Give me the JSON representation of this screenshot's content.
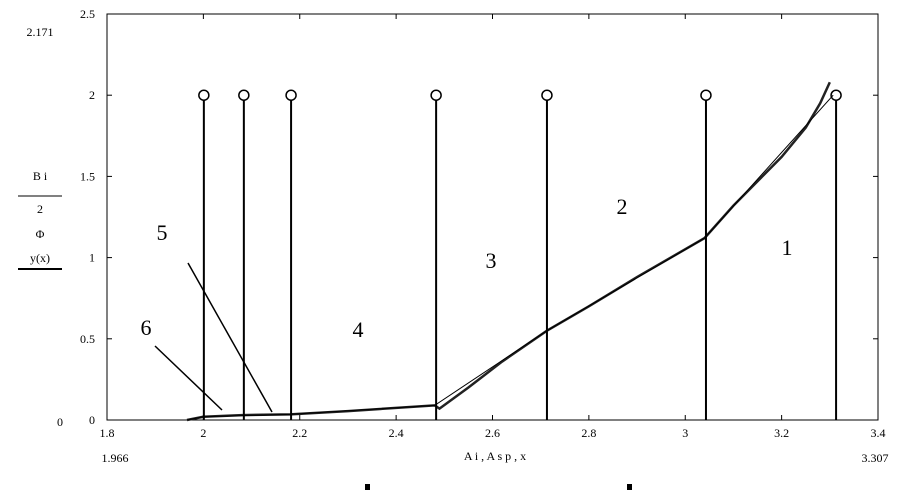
{
  "chart_data": {
    "type": "line",
    "x_label": "A i , A s p , x",
    "y_label_parts": [
      "B i",
      "2",
      "Φ",
      "y(x)"
    ],
    "limit_labels": {
      "y_max": "2.171",
      "y_min": "0",
      "x_min": "1.966",
      "x_max": "3.307"
    },
    "xlim": [
      1.8,
      3.4
    ],
    "xticks": [
      1.8,
      2,
      2.2,
      2.4,
      2.6,
      2.8,
      3,
      3.2,
      3.4
    ],
    "ylim": [
      0,
      2.5
    ],
    "yticks": [
      0,
      0.5,
      1,
      1.5,
      2,
      2.5
    ],
    "series": [
      {
        "name": "B i",
        "color": "#222222",
        "x": [
          1.966,
          2.0,
          2.08,
          2.18,
          2.3,
          2.48,
          2.49,
          2.55,
          2.62,
          2.713,
          2.8,
          2.9,
          3.04,
          3.1,
          3.2,
          3.25,
          3.28,
          3.3
        ],
        "values": [
          0,
          0.02,
          0.03,
          0.035,
          0.055,
          0.09,
          0.07,
          0.2,
          0.36,
          0.55,
          0.7,
          0.88,
          1.12,
          1.32,
          1.62,
          1.8,
          1.95,
          2.08
        ]
      },
      {
        "name": "y(x)",
        "color": "#000000",
        "x": [
          1.966,
          2.0,
          2.18,
          2.48,
          2.713,
          3.04,
          3.307
        ],
        "values": [
          0,
          0.02,
          0.035,
          0.09,
          0.55,
          1.12,
          2.0
        ]
      },
      {
        "name": "A s p",
        "color": "#000000",
        "x": [
          2.001,
          2.084,
          2.182,
          2.483,
          2.713,
          3.043,
          3.313
        ],
        "values": [
          2,
          2,
          2,
          2,
          2,
          2,
          2
        ]
      }
    ],
    "annotations": [
      "1",
      "2",
      "3",
      "4",
      "5",
      "6"
    ]
  }
}
